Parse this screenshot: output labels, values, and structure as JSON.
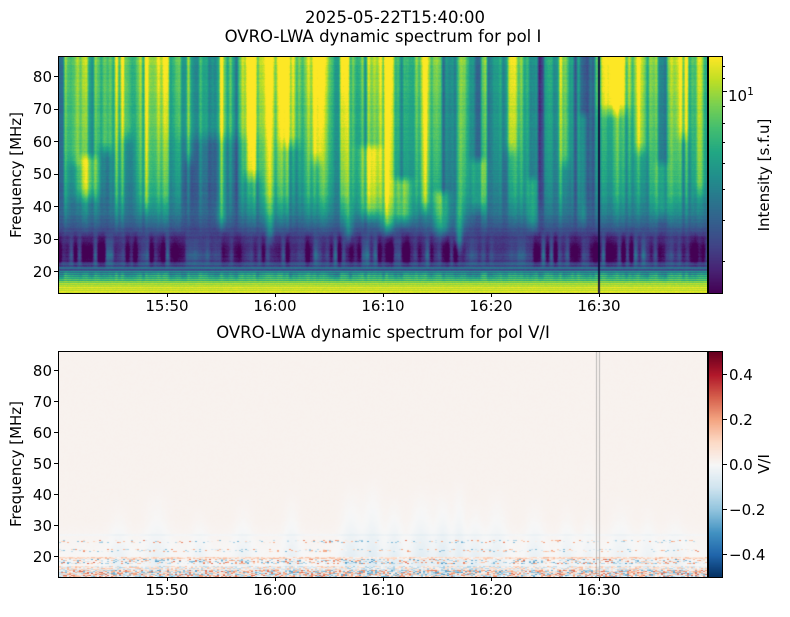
{
  "figure": {
    "suptitle": "2025-05-22T15:40:00",
    "background": "#ffffff"
  },
  "chart_data": [
    {
      "id": "pol_i",
      "type": "heatmap",
      "title": "OVRO-LWA dynamic spectrum for pol I",
      "ylabel": "Frequency [MHz]",
      "x_start_time": "15:40",
      "x_end_time": "16:40",
      "x_range_minutes": [
        0,
        60
      ],
      "xticks": [
        {
          "minute": 10,
          "label": "15:50"
        },
        {
          "minute": 20,
          "label": "16:00"
        },
        {
          "minute": 30,
          "label": "16:10"
        },
        {
          "minute": 40,
          "label": "16:20"
        },
        {
          "minute": 50,
          "label": "16:30"
        }
      ],
      "ylim_mhz": [
        13.5,
        86
      ],
      "yticks_mhz": [
        20,
        30,
        40,
        50,
        60,
        70,
        80
      ],
      "colormap": "viridis",
      "grid": false,
      "marker_time_minute": 50,
      "colorbar": {
        "label": "Intensity [s.f.u]",
        "scale": "log",
        "range_sfu": [
          2.4,
          12.8
        ],
        "major_tick": {
          "text_base": "10",
          "text_exp": "1",
          "value": 10
        },
        "minor_tick_values": [
          12,
          11,
          9,
          8,
          7,
          6,
          5,
          4,
          3
        ]
      },
      "render": {
        "seed": 7,
        "base_profile": [
          [
            86,
            0.63
          ],
          [
            78,
            0.6
          ],
          [
            62,
            0.56
          ],
          [
            50,
            0.52
          ],
          [
            42,
            0.46
          ],
          [
            37,
            0.38
          ],
          [
            33,
            0.24
          ],
          [
            30,
            0.13
          ],
          [
            27,
            0.11
          ],
          [
            24,
            0.12
          ],
          [
            22.8,
            0.22
          ],
          [
            21.5,
            0.38
          ],
          [
            20.4,
            0.44
          ],
          [
            19.4,
            0.5
          ],
          [
            18.4,
            0.6
          ],
          [
            17.4,
            0.72
          ],
          [
            16.6,
            0.84
          ],
          [
            15.6,
            0.9
          ],
          [
            14.6,
            0.93
          ],
          [
            13.5,
            0.96
          ]
        ],
        "dark_rows": [
          [
            20.6,
            0.3,
            0.18
          ],
          [
            21.9,
            0.25,
            0.12
          ],
          [
            23.6,
            0.3,
            0.06
          ]
        ],
        "bursts": [
          [
            1.5,
            1.0,
            55,
            86,
            0.28
          ],
          [
            2.5,
            1.6,
            44,
            57,
            0.3
          ],
          [
            4.3,
            0.9,
            58,
            86,
            0.3
          ],
          [
            6.3,
            0.8,
            62,
            86,
            0.22
          ],
          [
            8.0,
            0.5,
            40,
            86,
            0.18
          ],
          [
            12.0,
            0.6,
            55,
            86,
            0.22
          ],
          [
            14.5,
            5.0,
            62,
            86,
            0.18
          ],
          [
            15.0,
            0.7,
            35,
            86,
            0.26
          ],
          [
            17.8,
            1.0,
            50,
            86,
            0.3
          ],
          [
            19.5,
            0.5,
            30,
            86,
            0.2
          ],
          [
            21.3,
            1.2,
            60,
            86,
            0.3
          ],
          [
            23.8,
            0.7,
            55,
            86,
            0.26
          ],
          [
            26.8,
            0.5,
            30,
            86,
            0.22
          ],
          [
            28.8,
            1.5,
            38,
            60,
            0.28
          ],
          [
            30.4,
            0.8,
            33,
            86,
            0.34
          ],
          [
            31.8,
            1.2,
            36,
            50,
            0.33
          ],
          [
            33.8,
            0.6,
            40,
            86,
            0.26
          ],
          [
            35.4,
            1.0,
            32,
            46,
            0.3
          ],
          [
            37.0,
            0.5,
            28,
            86,
            0.32
          ],
          [
            38.8,
            1.0,
            40,
            56,
            0.26
          ],
          [
            41.8,
            0.8,
            58,
            86,
            0.22
          ],
          [
            43.8,
            0.7,
            34,
            50,
            0.22
          ],
          [
            46.8,
            0.6,
            54,
            86,
            0.22
          ],
          [
            48.5,
            0.5,
            35,
            70,
            0.18
          ],
          [
            51.3,
            1.8,
            70,
            86,
            0.42
          ],
          [
            53.8,
            0.8,
            58,
            86,
            0.26
          ],
          [
            55.8,
            0.8,
            38,
            55,
            0.2
          ],
          [
            57.8,
            0.7,
            62,
            86,
            0.26
          ],
          [
            59.3,
            0.6,
            45,
            86,
            0.2
          ]
        ]
      }
    },
    {
      "id": "pol_vi",
      "type": "heatmap",
      "title": "OVRO-LWA dynamic spectrum for pol V/I",
      "ylabel": "Frequency [MHz]",
      "x_start_time": "15:40",
      "x_end_time": "16:40",
      "x_range_minutes": [
        0,
        60
      ],
      "xticks": [
        {
          "minute": 10,
          "label": "15:50"
        },
        {
          "minute": 20,
          "label": "16:00"
        },
        {
          "minute": 30,
          "label": "16:10"
        },
        {
          "minute": 40,
          "label": "16:20"
        },
        {
          "minute": 50,
          "label": "16:30"
        }
      ],
      "ylim_mhz": [
        13.5,
        86
      ],
      "yticks_mhz": [
        20,
        30,
        40,
        50,
        60,
        70,
        80
      ],
      "colormap": "RdBu_r",
      "grid": false,
      "marker_time_minute": 50,
      "colorbar": {
        "label": "V/I",
        "scale": "linear",
        "range": [
          -0.5,
          0.5
        ],
        "ticks": [
          {
            "value": 0.4,
            "label": "0.4"
          },
          {
            "value": 0.2,
            "label": "0.2"
          },
          {
            "value": 0.0,
            "label": "0.0"
          },
          {
            "value": -0.2,
            "label": "−0.2"
          },
          {
            "value": -0.4,
            "label": "−0.4"
          }
        ]
      },
      "render": {
        "seed": 99,
        "base_value": 0.018,
        "low_freq_blue_tint": {
          "start_mhz": 32,
          "amp": 0.016
        },
        "plumes": [
          [
            5.5,
            1.2,
            0.035,
            40
          ],
          [
            9,
            1.5,
            0.04,
            45
          ],
          [
            13,
            1.0,
            0.03,
            38
          ],
          [
            17,
            1.2,
            0.035,
            42
          ],
          [
            21.5,
            1.0,
            0.04,
            44
          ],
          [
            27,
            1.3,
            0.055,
            46
          ],
          [
            29,
            1.2,
            0.06,
            48
          ],
          [
            31,
            1.0,
            0.055,
            42
          ],
          [
            33.5,
            1.4,
            0.06,
            45
          ],
          [
            35.5,
            1.0,
            0.065,
            44
          ],
          [
            37,
            0.8,
            0.055,
            48
          ],
          [
            38.5,
            1.0,
            0.05,
            40
          ],
          [
            40.5,
            1.3,
            0.045,
            44
          ],
          [
            44,
            1.2,
            0.04,
            42
          ],
          [
            47,
            1.0,
            0.035,
            40
          ],
          [
            49,
            0.8,
            0.03,
            38
          ],
          [
            52,
            1.4,
            0.035,
            42
          ],
          [
            54.5,
            1.0,
            0.03,
            40
          ],
          [
            57,
            1.2,
            0.03,
            38
          ]
        ],
        "speckle_rows": [
          {
            "f_mhz": 25.2,
            "half": 0.5,
            "density": 0.22,
            "amp": 0.5
          },
          {
            "f_mhz": 22.2,
            "half": 0.6,
            "density": 0.28,
            "amp": 0.45
          },
          {
            "f_mhz": 18.7,
            "half": 0.9,
            "density": 0.5,
            "amp": 0.55
          }
        ],
        "bottom_band": {
          "f_below": 17.3,
          "amp": 0.55,
          "red_bias": 0.05
        },
        "red_row": {
          "f_mhz": 19.9,
          "half": 0.3,
          "amp": 0.12
        },
        "gray_row": {
          "f_mhz": 27.1,
          "half": 0.3,
          "amp": 0.02
        }
      }
    }
  ],
  "colors": {
    "viridis_stops": [
      "#440154",
      "#482475",
      "#414487",
      "#355f8d",
      "#2a788e",
      "#21918c",
      "#22a884",
      "#44bf70",
      "#7ad151",
      "#bddf26",
      "#fde725"
    ],
    "rdbu_r_stops": [
      "#053061",
      "#2166ac",
      "#4393c3",
      "#92c5de",
      "#d1e5f0",
      "#f7f7f7",
      "#fddbc7",
      "#f4a582",
      "#d6604d",
      "#b2182b",
      "#67001f"
    ],
    "marker_line_i": "#10093a",
    "marker_line_vi": "#999999",
    "axis": "#000000",
    "background": "#ffffff"
  }
}
